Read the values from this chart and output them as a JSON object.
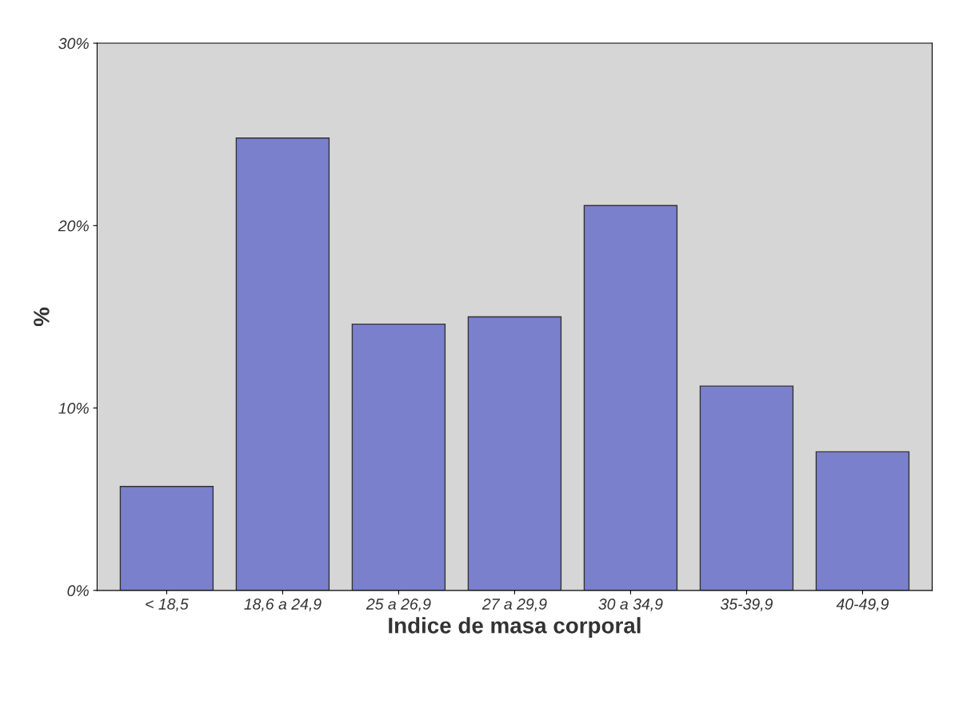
{
  "chart_data": {
    "type": "bar",
    "xlabel": "Indice de masa corporal",
    "ylabel": "%",
    "categories": [
      "< 18,5",
      "18,6 a 24,9",
      "25 a 26,9",
      "27 a 29,9",
      "30 a 34,9",
      "35-39,9",
      "40-49,9"
    ],
    "values": [
      5.7,
      24.8,
      14.6,
      15.0,
      21.1,
      11.2,
      7.6
    ],
    "color": "#7b80cc",
    "ylim": [
      0,
      30
    ],
    "yticks": [
      {
        "value": 0,
        "label": "0%"
      },
      {
        "value": 10,
        "label": "10%"
      },
      {
        "value": 20,
        "label": "20%"
      },
      {
        "value": 30,
        "label": "30%"
      }
    ],
    "grid": false
  }
}
